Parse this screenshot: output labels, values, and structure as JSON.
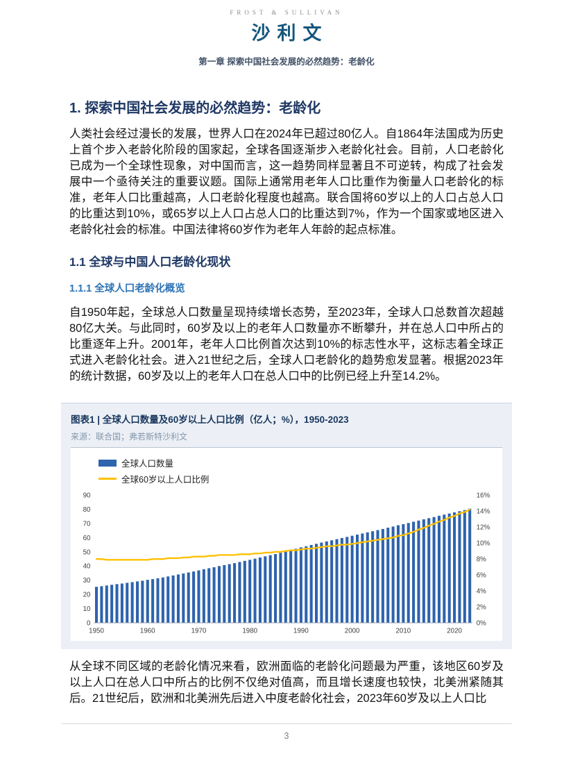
{
  "header": {
    "logo_en": "FROST & SULLIVAN",
    "logo_cn": "沙利文",
    "chapter": "第一章 探索中国社会发展的必然趋势：老龄化"
  },
  "content": {
    "h1": "1. 探索中国社会发展的必然趋势：老龄化",
    "para1": "人类社会经过漫长的发展，世界人口在2024年已超过80亿人。自1864年法国成为历史上首个步入老龄化阶段的国家起，全球各国逐渐步入老龄化社会。目前，人口老龄化已成为一个全球性现象，对中国而言，这一趋势同样显著且不可逆转，构成了社会发展中一个亟待关注的重要议题。国际上通常用老年人口比重作为衡量人口老龄化的标准，老年人口比重越高，人口老龄化程度也越高。联合国将60岁以上的人口占总人口的比重达到10%，或65岁以上人口占总人口的比重达到7%，作为一个国家或地区进入老龄化社会的标准。中国法律将60岁作为老年人年龄的起点标准。",
    "h2": "1.1 全球与中国人口老龄化现状",
    "h3": "1.1.1 全球人口老龄化概览",
    "para2": "自1950年起，全球总人口数量呈现持续增长态势，至2023年，全球人口总数首次超越80亿大关。与此同时，60岁及以上的老年人口数量亦不断攀升，并在总人口中所占的比重逐年上升。2001年，老年人口比例首次达到10%的标志性水平，这标志着全球正式进入老龄化社会。进入21世纪之后，全球人口老龄化的趋势愈发显著。根据2023年的统计数据，60岁及以上的老年人口在总人口中的比例已经上升至14.2%。",
    "para3": "从全球不同区域的老龄化情况来看，欧洲面临的老龄化问题最为严重，该地区60岁及以上人口在总人口中所占的比例不仅绝对值高，而且增长速度也较快，北美洲紧随其后。21世纪后，欧洲和北美洲先后进入中度老龄化社会，2023年60岁及以上人口比"
  },
  "figure": {
    "title": "图表1 | 全球人口数量及60岁以上人口比例（亿人；%），1950-2023",
    "source": "来源：联合国；弗若斯特沙利文"
  },
  "chart_data": {
    "type": "bar",
    "title": "全球人口数量及60岁以上人口比例（亿人；%），1950-2023",
    "x": [
      1950,
      1951,
      1952,
      1953,
      1954,
      1955,
      1956,
      1957,
      1958,
      1959,
      1960,
      1961,
      1962,
      1963,
      1964,
      1965,
      1966,
      1967,
      1968,
      1969,
      1970,
      1971,
      1972,
      1973,
      1974,
      1975,
      1976,
      1977,
      1978,
      1979,
      1980,
      1981,
      1982,
      1983,
      1984,
      1985,
      1986,
      1987,
      1988,
      1989,
      1990,
      1991,
      1992,
      1993,
      1994,
      1995,
      1996,
      1997,
      1998,
      1999,
      2000,
      2001,
      2002,
      2003,
      2004,
      2005,
      2006,
      2007,
      2008,
      2009,
      2010,
      2011,
      2012,
      2013,
      2014,
      2015,
      2016,
      2017,
      2018,
      2019,
      2020,
      2021,
      2022,
      2023
    ],
    "series": [
      {
        "name": "全球人口数量",
        "type": "bar",
        "axis": "left",
        "unit": "亿人",
        "values": [
          25.4,
          25.8,
          26.3,
          26.8,
          27.3,
          27.7,
          28.2,
          28.7,
          29.2,
          29.7,
          30.3,
          30.8,
          31.4,
          32.0,
          32.7,
          33.4,
          34.1,
          34.8,
          35.5,
          36.2,
          37.0,
          37.8,
          38.5,
          39.2,
          40.0,
          40.7,
          41.4,
          42.1,
          42.9,
          43.7,
          44.4,
          45.2,
          46.1,
          46.9,
          47.7,
          48.5,
          49.4,
          50.4,
          51.3,
          52.2,
          53.2,
          54.0,
          54.9,
          55.7,
          56.6,
          57.4,
          58.2,
          59.0,
          59.8,
          60.6,
          61.4,
          62.2,
          63.0,
          63.8,
          64.6,
          65.4,
          66.2,
          67.1,
          67.9,
          68.8,
          69.6,
          70.4,
          71.3,
          72.1,
          73.0,
          73.8,
          74.6,
          75.5,
          76.3,
          77.1,
          77.9,
          78.7,
          79.5,
          80.5
        ]
      },
      {
        "name": "全球60岁以上人口比例",
        "type": "line",
        "axis": "right",
        "unit": "%",
        "values": [
          8.0,
          8.0,
          7.9,
          7.9,
          7.9,
          7.9,
          7.9,
          7.9,
          7.9,
          7.9,
          7.9,
          8.0,
          8.0,
          8.0,
          8.1,
          8.1,
          8.1,
          8.2,
          8.2,
          8.3,
          8.3,
          8.3,
          8.4,
          8.4,
          8.5,
          8.5,
          8.5,
          8.5,
          8.6,
          8.6,
          8.6,
          8.7,
          8.7,
          8.8,
          8.8,
          8.9,
          8.9,
          9.0,
          9.1,
          9.1,
          9.2,
          9.3,
          9.3,
          9.4,
          9.5,
          9.6,
          9.6,
          9.7,
          9.8,
          9.8,
          9.9,
          10.0,
          10.1,
          10.2,
          10.3,
          10.4,
          10.5,
          10.6,
          10.7,
          10.9,
          11.0,
          11.2,
          11.4,
          11.7,
          11.9,
          12.2,
          12.4,
          12.7,
          12.9,
          13.2,
          13.4,
          13.7,
          13.9,
          14.2
        ]
      }
    ],
    "left_axis": {
      "min": 0,
      "max": 90,
      "step": 10
    },
    "right_axis": {
      "min": 0,
      "max": 16,
      "step": 2,
      "format": "percent"
    },
    "x_ticks": [
      1950,
      1960,
      1970,
      1980,
      1990,
      2000,
      2010,
      2020
    ],
    "colors": {
      "bar": "#2E63AD",
      "line": "#FFC000"
    },
    "legend_position": "top-left",
    "grid": false
  },
  "footer": {
    "page_number": "3"
  }
}
